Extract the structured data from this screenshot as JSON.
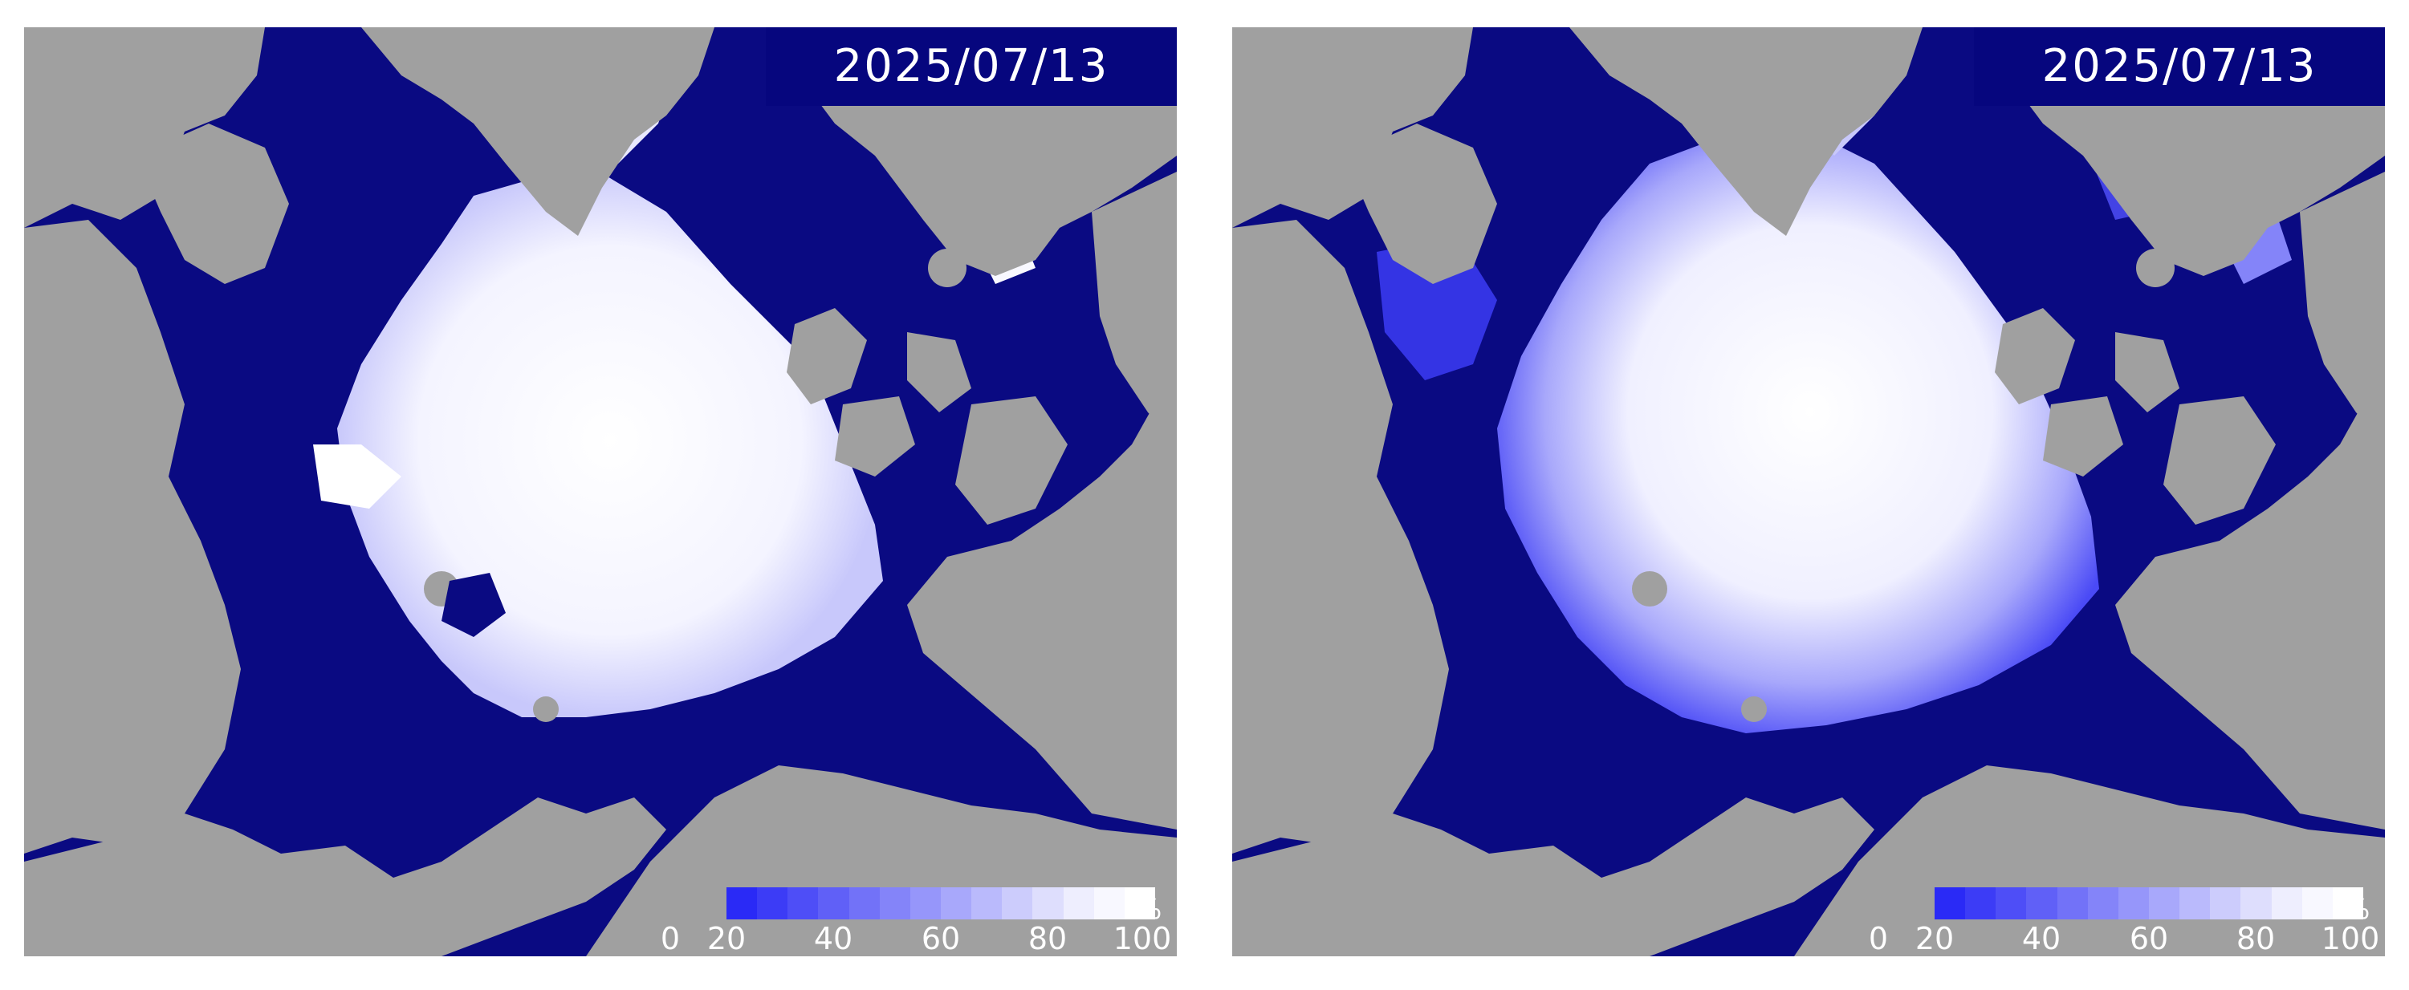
{
  "maps": [
    {
      "id": "left",
      "date": "2025/07/13",
      "legend": {
        "unit": "%",
        "ticks": [
          "0",
          "20",
          "40",
          "60",
          "80",
          "100"
        ]
      }
    },
    {
      "id": "right",
      "date": "2025/07/13",
      "legend": {
        "unit": "%",
        "ticks": [
          "0",
          "20",
          "40",
          "60",
          "80",
          "100"
        ]
      }
    }
  ],
  "colors": {
    "ocean": "#0a0a82",
    "land": "#a0a0a0",
    "date_box": "#06067e",
    "text": "#ffffff",
    "scale": [
      "#2a2af6",
      "#3c3cf6",
      "#4e4ef7",
      "#6060f7",
      "#7272f8",
      "#8484f9",
      "#9696fa",
      "#a8a8fb",
      "#babafc",
      "#ccccfc",
      "#dedefd",
      "#eeeefe",
      "#f8f8ff",
      "#ffffff"
    ]
  }
}
